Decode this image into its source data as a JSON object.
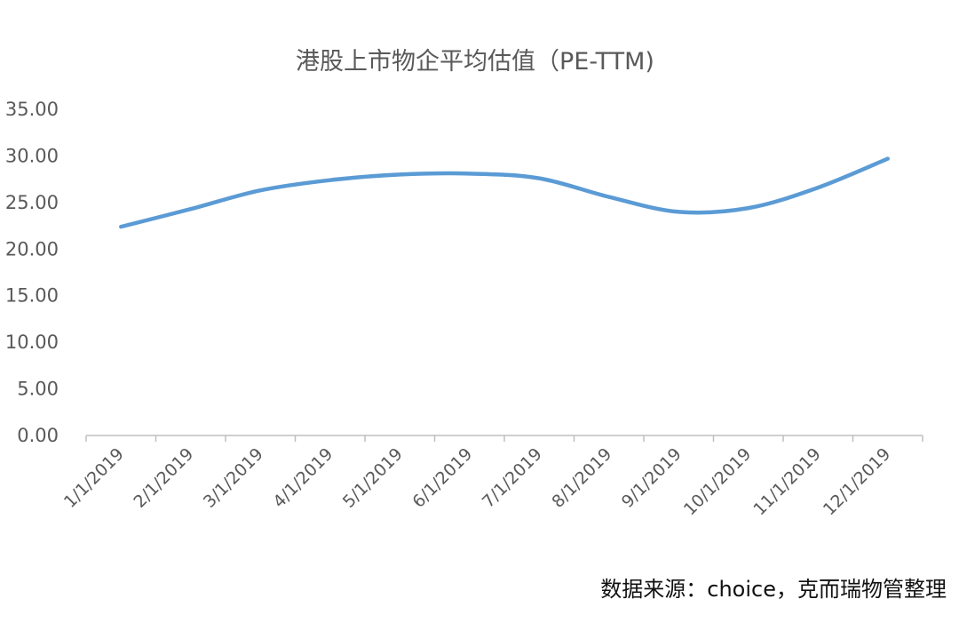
{
  "source_note": "数据来源：choice，克而瑞物管整理",
  "colors": {
    "series_line": "#5b9bd5",
    "text": "#595959",
    "axis": "#bfbfbf"
  },
  "chart_data": {
    "type": "line",
    "title": "港股上市物企平均估值（PE-TTM)",
    "xlabel": "",
    "ylabel": "",
    "categories": [
      "1/1/2019",
      "2/1/2019",
      "3/1/2019",
      "4/1/2019",
      "5/1/2019",
      "6/1/2019",
      "7/1/2019",
      "8/1/2019",
      "9/1/2019",
      "10/1/2019",
      "11/1/2019",
      "12/1/2019"
    ],
    "series": [
      {
        "values": [
          22.4,
          24.3,
          26.3,
          27.4,
          28.0,
          28.1,
          27.6,
          25.6,
          24.0,
          24.4,
          26.6,
          29.7
        ]
      }
    ],
    "ylim": [
      0,
      35
    ],
    "yticks": [
      "0.00",
      "5.00",
      "10.00",
      "15.00",
      "20.00",
      "25.00",
      "30.00",
      "35.00"
    ],
    "grid": false,
    "legend": "none",
    "smooth": true
  }
}
